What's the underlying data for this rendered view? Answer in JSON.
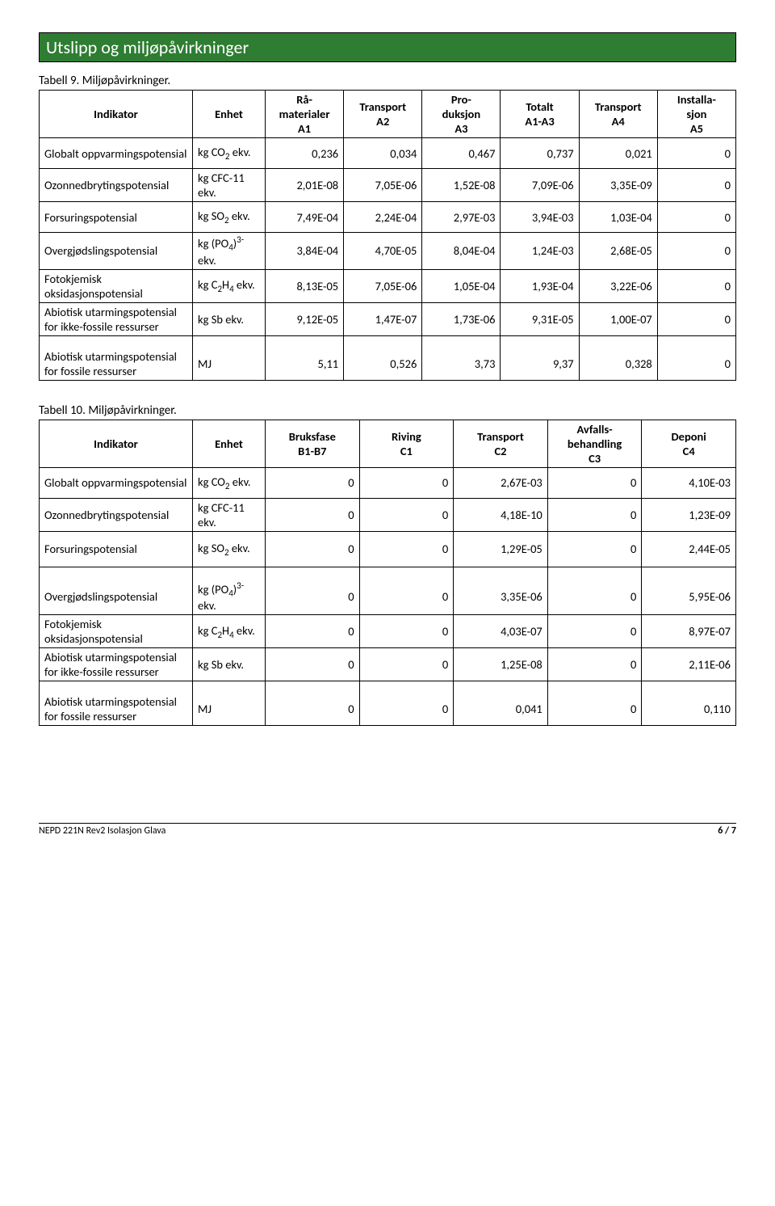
{
  "header": {
    "title": "Utslipp og miljøpåvirkninger"
  },
  "table9": {
    "caption": "Tabell 9. Miljøpåvirkninger.",
    "columns": [
      "Indikator",
      "Enhet",
      "Rå-\nmaterialer\nA1",
      "Transport\nA2",
      "Pro-\nduksjon\nA3",
      "Totalt\nA1-A3",
      "Transport\nA4",
      "Installa-\nsjon\nA5"
    ],
    "rows": [
      {
        "ind": "Globalt oppvarmingspotensial",
        "unit": "kg CO₂ ekv.",
        "v": [
          "0,236",
          "0,034",
          "0,467",
          "0,737",
          "0,021",
          "0"
        ]
      },
      {
        "ind": "Ozonnedbrytingspotensial",
        "unit": "kg CFC-11 ekv.",
        "v": [
          "2,01E-08",
          "7,05E-06",
          "1,52E-08",
          "7,09E-06",
          "3,35E-09",
          "0"
        ]
      },
      {
        "ind": "Forsuringspotensial",
        "unit": "kg SO₂ ekv.",
        "v": [
          "7,49E-04",
          "2,24E-04",
          "2,97E-03",
          "3,94E-03",
          "1,03E-04",
          "0"
        ]
      },
      {
        "ind": "Overgjødslingspotensial",
        "unit": "kg (PO₄)³⁻ ekv.",
        "v": [
          "3,84E-04",
          "4,70E-05",
          "8,04E-04",
          "1,24E-03",
          "2,68E-05",
          "0"
        ]
      },
      {
        "ind": "Fotokjemisk oksidasjonspotensial",
        "unit": "kg C₂H₄ ekv.",
        "v": [
          "8,13E-05",
          "7,05E-06",
          "1,05E-04",
          "1,93E-04",
          "3,22E-06",
          "0"
        ]
      },
      {
        "ind": "Abiotisk utarmingspotensial for ikke-fossile ressurser",
        "unit": "kg Sb ekv.",
        "v": [
          "9,12E-05",
          "1,47E-07",
          "1,73E-06",
          "9,31E-05",
          "1,00E-07",
          "0"
        ]
      },
      {
        "ind": "Abiotisk utarmingspotensial for fossile ressurser",
        "unit": "MJ",
        "v": [
          "5,11",
          "0,526",
          "3,73",
          "9,37",
          "0,328",
          "0"
        ]
      }
    ]
  },
  "table10": {
    "caption": "Tabell 10. Miljøpåvirkninger.",
    "columns": [
      "Indikator",
      "Enhet",
      "Bruksfase\nB1-B7",
      "Riving\nC1",
      "Transport\nC2",
      "Avfalls-\nbehandling\nC3",
      "Deponi\nC4"
    ],
    "rows": [
      {
        "ind": "Globalt oppvarmingspotensial",
        "unit": "kg CO₂ ekv.",
        "v": [
          "0",
          "0",
          "2,67E-03",
          "0",
          "4,10E-03"
        ]
      },
      {
        "ind": "Ozonnedbrytingspotensial",
        "unit": "kg CFC-11 ekv.",
        "v": [
          "0",
          "0",
          "4,18E-10",
          "0",
          "1,23E-09"
        ]
      },
      {
        "ind": "Forsuringspotensial",
        "unit": "kg SO₂ ekv.",
        "v": [
          "0",
          "0",
          "1,29E-05",
          "0",
          "2,44E-05"
        ]
      },
      {
        "ind": "Overgjødslingspotensial",
        "unit": "kg (PO₄)³⁻ ekv.",
        "v": [
          "0",
          "0",
          "3,35E-06",
          "0",
          "5,95E-06"
        ]
      },
      {
        "ind": "Fotokjemisk oksidasjonspotensial",
        "unit": "kg C₂H₄ ekv.",
        "v": [
          "0",
          "0",
          "4,03E-07",
          "0",
          "8,97E-07"
        ]
      },
      {
        "ind": "Abiotisk utarmingspotensial for ikke-fossile ressurser",
        "unit": "kg Sb ekv.",
        "v": [
          "0",
          "0",
          "1,25E-08",
          "0",
          "2,11E-06"
        ]
      },
      {
        "ind": "Abiotisk utarmingspotensial for fossile ressurser",
        "unit": "MJ",
        "v": [
          "0",
          "0",
          "0,041",
          "0",
          "0,110"
        ]
      }
    ]
  },
  "footer": {
    "doc": "NEPD 221N Rev2 Isolasjon Glava",
    "page": "6 / 7"
  },
  "colors": {
    "header_bg": "#2e7d32",
    "header_text": "#ffffff",
    "border": "#000000",
    "page_bg": "#ffffff"
  }
}
